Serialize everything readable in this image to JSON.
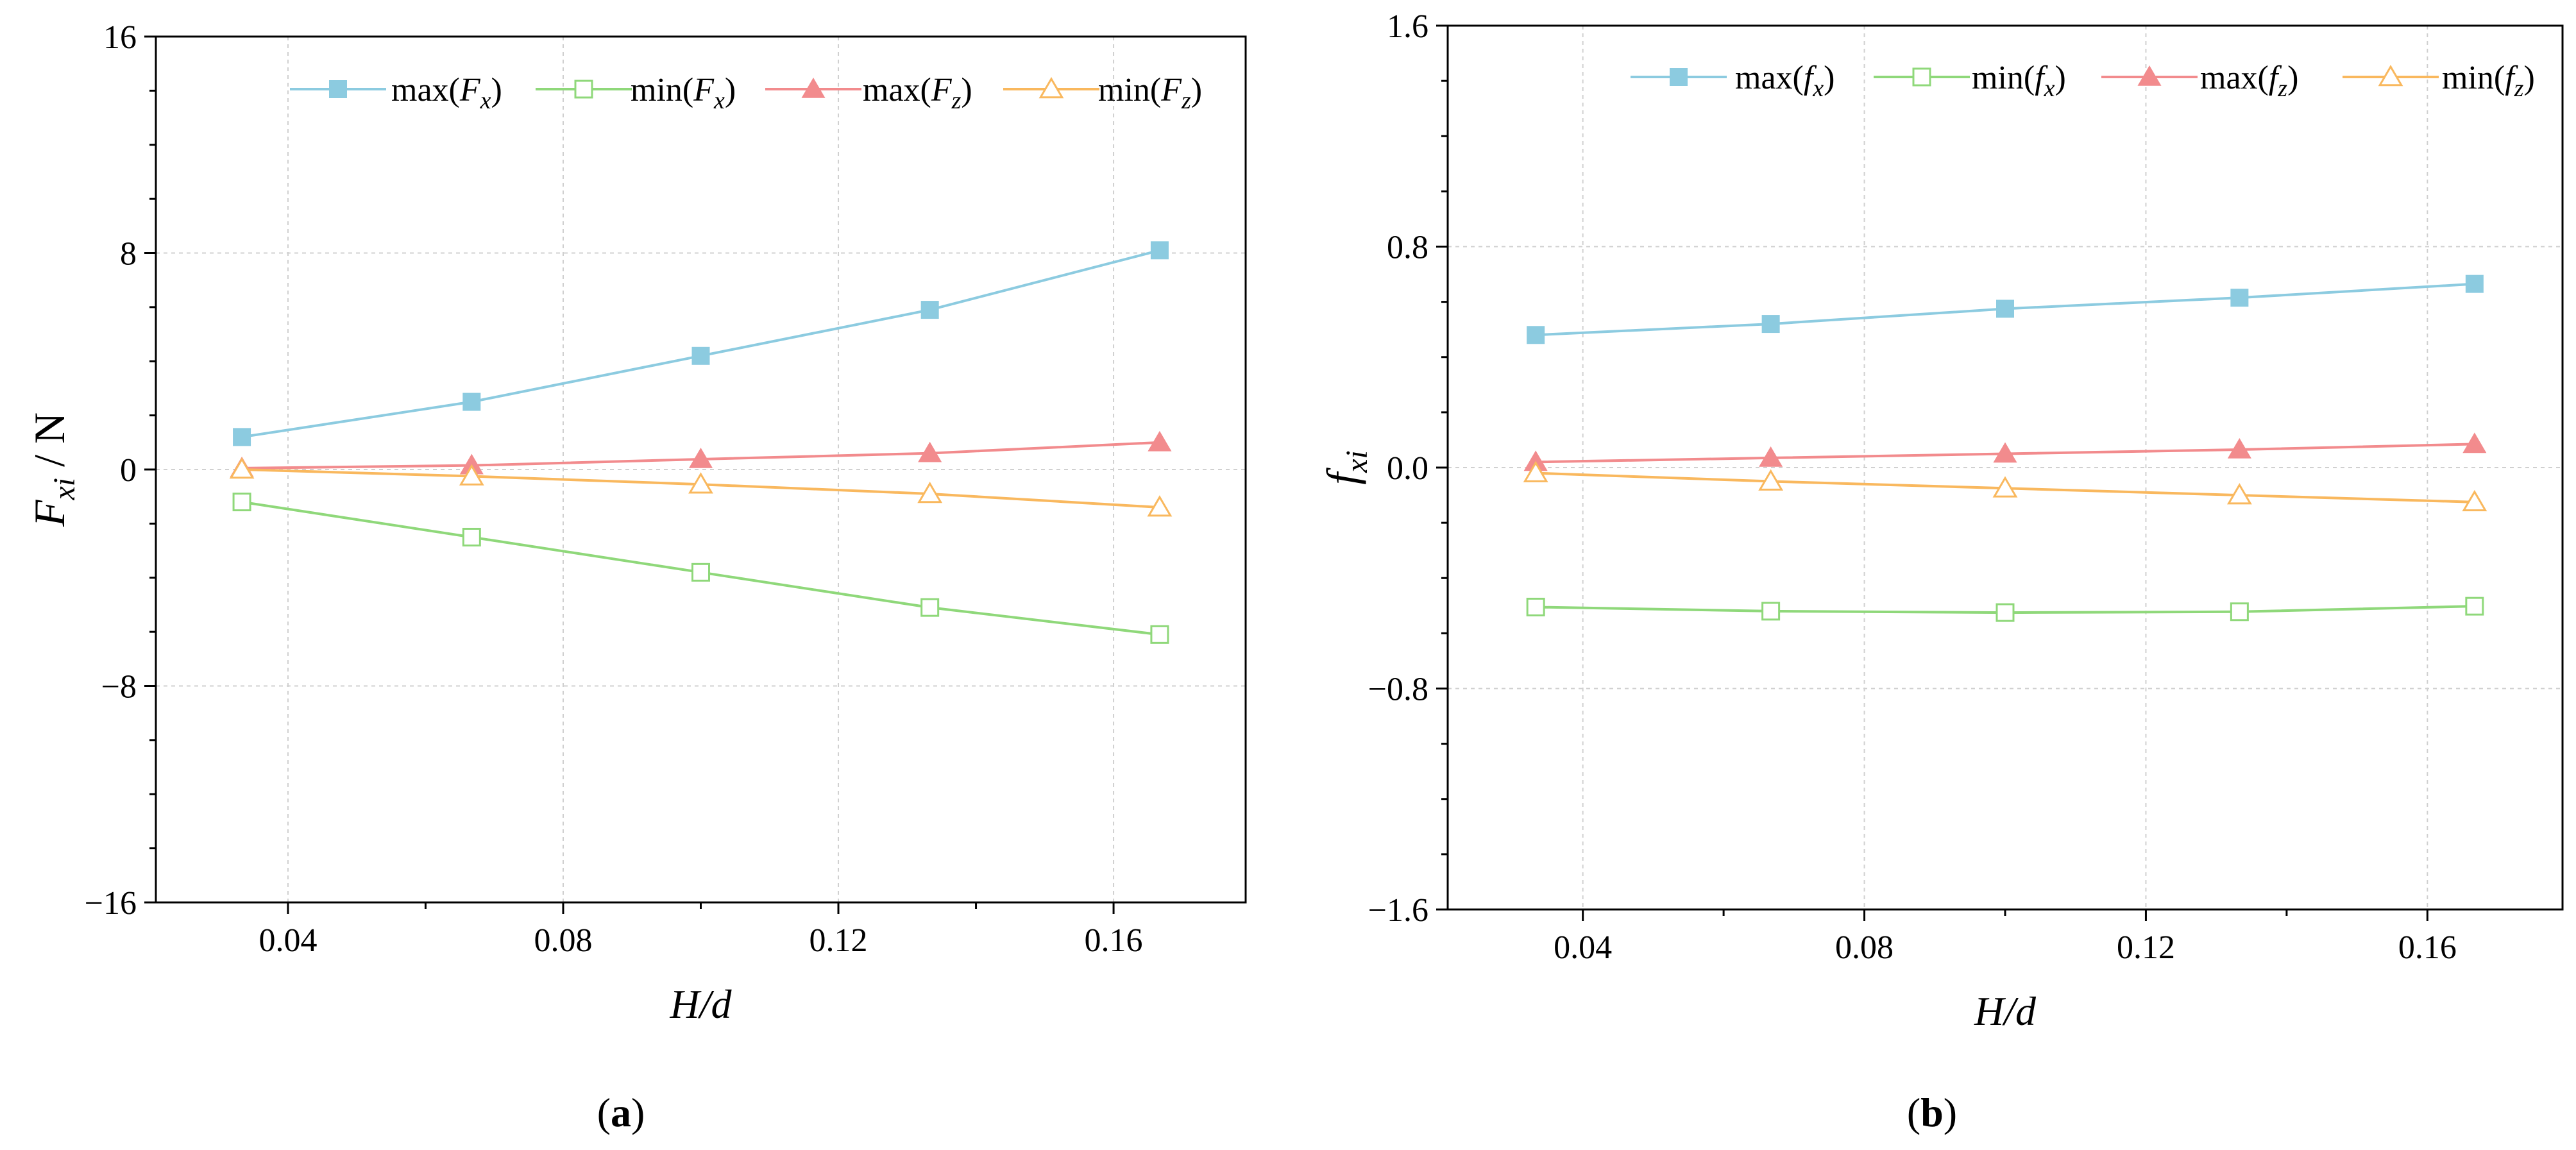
{
  "colors": {
    "max_fx": "#8ccbe0",
    "min_fx": "#8fd87a",
    "max_fz": "#f28b8d",
    "min_fz": "#f9b85e",
    "grid": "#d0d0d0",
    "axis": "#000000"
  },
  "chart_data": [
    {
      "type": "line",
      "panel_label": "a",
      "xlabel": "H/d",
      "ylabel": {
        "main": "F",
        "sub": "xi",
        "unit": " / N"
      },
      "xlim": [
        0.0208,
        0.1792
      ],
      "ylim": [
        -16,
        16
      ],
      "xticks": [
        0.04,
        0.08,
        0.12,
        0.16
      ],
      "xtick_labels": [
        "0.04",
        "0.08",
        "0.12",
        "0.16"
      ],
      "yticks": [
        -16,
        -8,
        0,
        8,
        16
      ],
      "ytick_labels": [
        "−16",
        "−8",
        "0",
        "8",
        "16"
      ],
      "grid": true,
      "legend_position": "top-right",
      "x": [
        0.0333,
        0.0667,
        0.1,
        0.1333,
        0.1667
      ],
      "series": [
        {
          "key": "max_fx",
          "name": "max(Fx)",
          "legend": {
            "prefix": "max(",
            "var": "F",
            "sub": "x",
            "suffix": ")"
          },
          "marker": "square-filled",
          "values": [
            1.2,
            2.5,
            4.2,
            5.9,
            8.1
          ]
        },
        {
          "key": "min_fx",
          "name": "min(Fx)",
          "legend": {
            "prefix": "min(",
            "var": "F",
            "sub": "x",
            "suffix": ")"
          },
          "marker": "square-open",
          "values": [
            -1.2,
            -2.5,
            -3.8,
            -5.1,
            -6.1
          ]
        },
        {
          "key": "max_fz",
          "name": "max(Fz)",
          "legend": {
            "prefix": "max(",
            "var": "F",
            "sub": "z",
            "suffix": ")"
          },
          "marker": "triangle-filled",
          "values": [
            0.05,
            0.15,
            0.38,
            0.6,
            1.0
          ]
        },
        {
          "key": "min_fz",
          "name": "min(Fz)",
          "legend": {
            "prefix": "min(",
            "var": "F",
            "sub": "z",
            "suffix": ")"
          },
          "marker": "triangle-open",
          "values": [
            0.0,
            -0.25,
            -0.55,
            -0.9,
            -1.4
          ]
        }
      ]
    },
    {
      "type": "line",
      "panel_label": "b",
      "xlabel": "H/d",
      "ylabel": {
        "main": "f",
        "sub": "xi",
        "unit": ""
      },
      "xlim": [
        0.0208,
        0.1792
      ],
      "ylim": [
        -1.6,
        1.6
      ],
      "xticks": [
        0.04,
        0.08,
        0.12,
        0.16
      ],
      "xtick_labels": [
        "0.04",
        "0.08",
        "0.12",
        "0.16"
      ],
      "yticks": [
        -1.6,
        -0.8,
        0.0,
        0.8,
        1.6
      ],
      "ytick_labels": [
        "−1.6",
        "−0.8",
        "0.0",
        "0.8",
        "1.6"
      ],
      "grid": true,
      "legend_position": "top-right",
      "x": [
        0.0333,
        0.0667,
        0.1,
        0.1333,
        0.1667
      ],
      "series": [
        {
          "key": "max_fx",
          "name": "max(fx)",
          "legend": {
            "prefix": "max(",
            "var": "f",
            "sub": "x",
            "suffix": ")"
          },
          "marker": "square-filled",
          "values": [
            0.48,
            0.52,
            0.575,
            0.615,
            0.665
          ]
        },
        {
          "key": "min_fx",
          "name": "min(fx)",
          "legend": {
            "prefix": "min(",
            "var": "f",
            "sub": "x",
            "suffix": ")"
          },
          "marker": "square-open",
          "values": [
            -0.505,
            -0.52,
            -0.525,
            -0.522,
            -0.502
          ]
        },
        {
          "key": "max_fz",
          "name": "max(fz)",
          "legend": {
            "prefix": "max(",
            "var": "f",
            "sub": "z",
            "suffix": ")"
          },
          "marker": "triangle-filled",
          "values": [
            0.02,
            0.035,
            0.05,
            0.065,
            0.085
          ]
        },
        {
          "key": "min_fz",
          "name": "min(fz)",
          "legend": {
            "prefix": "min(",
            "var": "f",
            "sub": "z",
            "suffix": ")"
          },
          "marker": "triangle-open",
          "values": [
            -0.02,
            -0.05,
            -0.075,
            -0.1,
            -0.125
          ]
        }
      ]
    }
  ]
}
